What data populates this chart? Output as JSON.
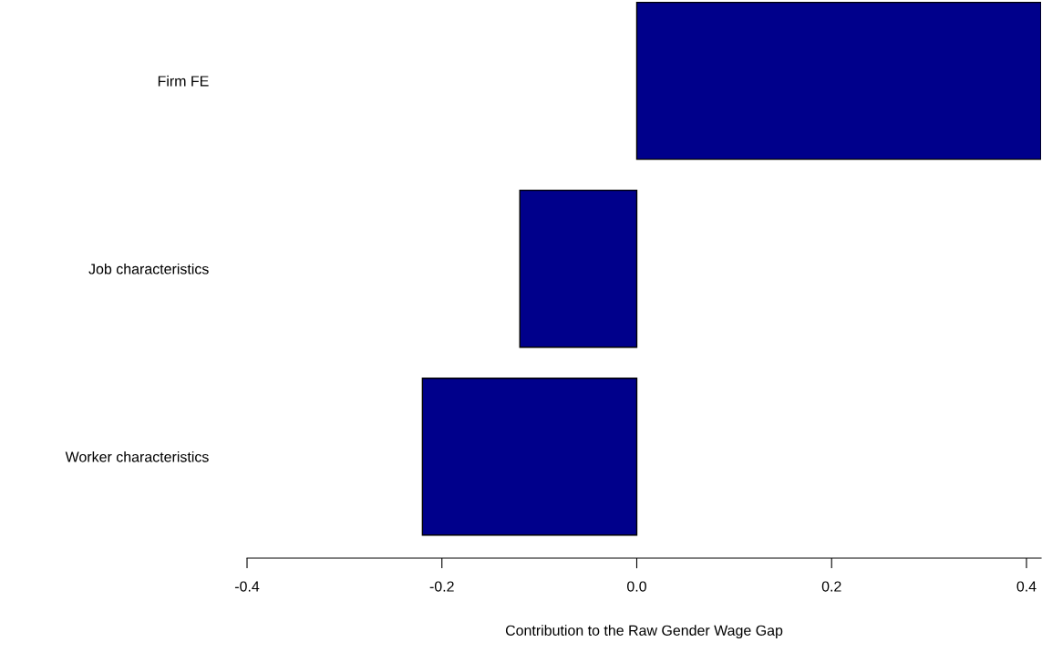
{
  "chart_data": {
    "type": "bar",
    "orientation": "horizontal",
    "categories": [
      "Firm FE",
      "Job characteristics",
      "Worker characteristics"
    ],
    "values": [
      0.415,
      -0.12,
      -0.22
    ],
    "color": "#00008b",
    "xlabel": "Contribution to the Raw Gender Wage Gap",
    "xlim": [
      -0.4,
      0.415
    ],
    "xticks": [
      {
        "value": -0.4,
        "label": "-0.4"
      },
      {
        "value": -0.2,
        "label": "-0.2"
      },
      {
        "value": 0.0,
        "label": "0.0"
      },
      {
        "value": 0.2,
        "label": "0.2"
      },
      {
        "value": 0.4,
        "label": "0.4"
      }
    ],
    "grid": false,
    "legend": false
  }
}
